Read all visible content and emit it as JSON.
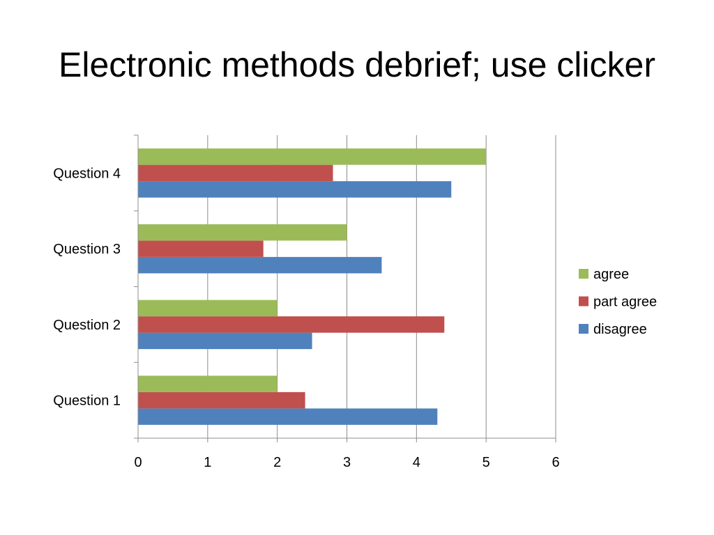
{
  "slide": {
    "title": "Electronic methods debrief; use clicker"
  },
  "chart_data": {
    "type": "bar",
    "orientation": "horizontal",
    "title": "Electronic methods debrief; use clicker",
    "xlabel": "",
    "ylabel": "",
    "xlim": [
      0,
      6
    ],
    "x_ticks": [
      0,
      1,
      2,
      3,
      4,
      5,
      6
    ],
    "grid": "vertical",
    "legend_position": "right",
    "categories": [
      "Question 1",
      "Question 2",
      "Question 3",
      "Question 4"
    ],
    "series": [
      {
        "name": "disagree",
        "color": "#4F81BD",
        "values": [
          4.3,
          2.5,
          3.5,
          4.5
        ]
      },
      {
        "name": "part agree",
        "color": "#C0504D",
        "values": [
          2.4,
          4.4,
          1.8,
          2.8
        ]
      },
      {
        "name": "agree",
        "color": "#9BBB59",
        "values": [
          2.0,
          2.0,
          3.0,
          5.0
        ]
      }
    ],
    "legend_order": [
      "agree",
      "part agree",
      "disagree"
    ]
  }
}
